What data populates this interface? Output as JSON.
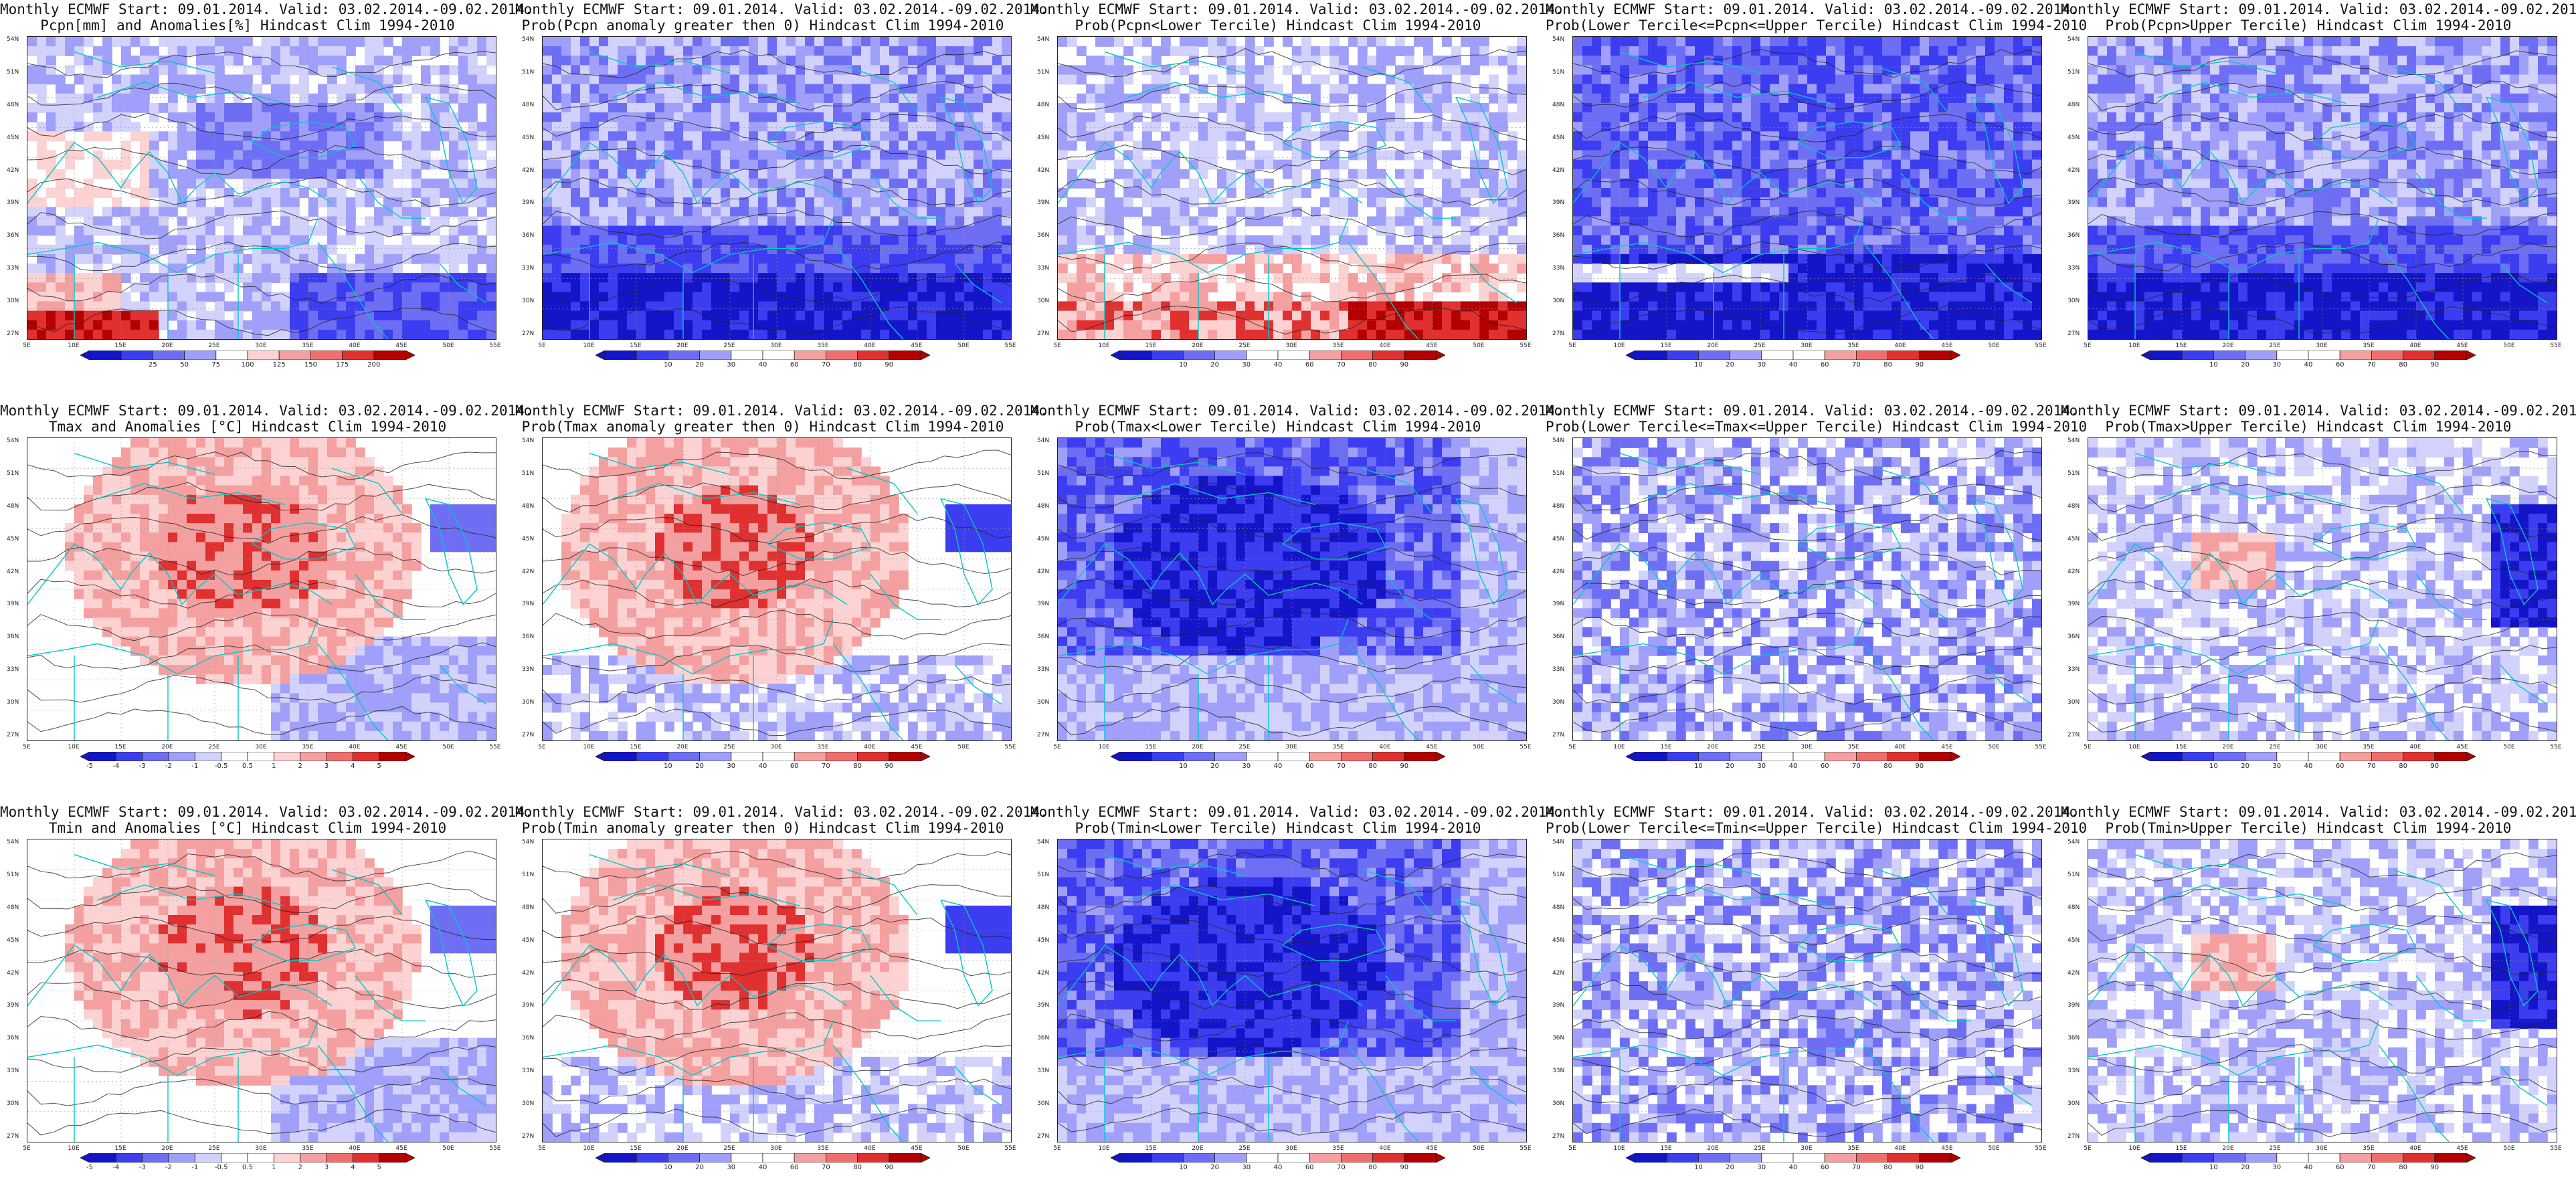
{
  "panels": [
    {
      "title_line1": "Monthly ECMWF Start: 09.01.2014. Valid: 03.02.2014.-09.02.2014.",
      "title_line2": "Pcpn[mm] and Anomalies[%]",
      "title_line3": "Hindcast Clim 1994-2010",
      "kind": "pcpn_anom",
      "cbar_type": "pcpn_pct",
      "cbar_labels": [
        "25",
        "50",
        "75",
        "100",
        "125",
        "150",
        "175",
        "200"
      ]
    },
    {
      "title_line1": "Monthly ECMWF Start: 09.01.2014. Valid: 03.02.2014.-09.02.2014.",
      "title_line2": "Prob(Pcpn anomaly greater then 0)",
      "title_line3": "Hindcast Clim 1994-2010",
      "kind": "pcpn_prob",
      "cbar_type": "prob",
      "cbar_labels": [
        "10",
        "20",
        "30",
        "40",
        "60",
        "70",
        "80",
        "90"
      ]
    },
    {
      "title_line1": "Monthly ECMWF Start: 09.01.2014. Valid: 03.02.2014.-09.02.2014.",
      "title_line2": "Prob(Pcpn<Lower Tercile)",
      "title_line3": "Hindcast Clim 1994-2010",
      "kind": "pcpn_lower",
      "cbar_type": "prob",
      "cbar_labels": [
        "10",
        "20",
        "30",
        "40",
        "60",
        "70",
        "80",
        "90"
      ]
    },
    {
      "title_line1": "Monthly ECMWF Start: 09.01.2014. Valid: 03.02.2014.-09.02.2014.",
      "title_line2": "Prob(Lower Tercile<=Pcpn<=Upper Tercile)",
      "title_line3": "Hindcast Clim 1994-2010",
      "kind": "pcpn_mid",
      "cbar_type": "prob",
      "cbar_labels": [
        "10",
        "20",
        "30",
        "40",
        "60",
        "70",
        "80",
        "90"
      ]
    },
    {
      "title_line1": "Monthly ECMWF Start: 09.01.2014. Valid: 03.02.2014.-09.02.2014.",
      "title_line2": "Prob(Pcpn>Upper Tercile)",
      "title_line3": "Hindcast Clim 1994-2010",
      "kind": "pcpn_upper",
      "cbar_type": "prob",
      "cbar_labels": [
        "10",
        "20",
        "30",
        "40",
        "60",
        "70",
        "80",
        "90"
      ]
    },
    {
      "title_line1": "Monthly ECMWF Start: 09.01.2014. Valid: 03.02.2014.-09.02.2014.",
      "title_line2": "Tmax and Anomalies [°C]",
      "title_line3": "Hindcast Clim 1994-2010",
      "kind": "warm_anom",
      "cbar_type": "temp",
      "cbar_labels": [
        "-5",
        "-4",
        "-3",
        "-2",
        "-1",
        "-0.5",
        "0.5",
        "1",
        "2",
        "3",
        "4",
        "5"
      ]
    },
    {
      "title_line1": "Monthly ECMWF Start: 09.01.2014. Valid: 03.02.2014.-09.02.2014.",
      "title_line2": "Prob(Tmax anomaly greater then 0)",
      "title_line3": "Hindcast Clim 1994-2010",
      "kind": "warm_prob",
      "cbar_type": "prob",
      "cbar_labels": [
        "10",
        "20",
        "30",
        "40",
        "60",
        "70",
        "80",
        "90"
      ]
    },
    {
      "title_line1": "Monthly ECMWF Start: 09.01.2014. Valid: 03.02.2014.-09.02.2014.",
      "title_line2": "Prob(Tmax<Lower Tercile)",
      "title_line3": "Hindcast Clim 1994-2010",
      "kind": "cold_strong",
      "cbar_type": "prob",
      "cbar_labels": [
        "10",
        "20",
        "30",
        "40",
        "60",
        "70",
        "80",
        "90"
      ]
    },
    {
      "title_line1": "Monthly ECMWF Start: 09.01.2014. Valid: 03.02.2014.-09.02.2014.",
      "title_line2": "Prob(Lower Tercile<=Tmax<=Upper Tercile)",
      "title_line3": "Hindcast Clim 1994-2010",
      "kind": "mid_mixed",
      "cbar_type": "prob",
      "cbar_labels": [
        "10",
        "20",
        "30",
        "40",
        "60",
        "70",
        "80",
        "90"
      ]
    },
    {
      "title_line1": "Monthly ECMWF Start: 09.01.2014. Valid: 03.02.2014.-09.02.2014.",
      "title_line2": "Prob(Tmax>Upper Tercile)",
      "title_line3": "Hindcast Clim 1994-2010",
      "kind": "upper_light",
      "cbar_type": "prob",
      "cbar_labels": [
        "10",
        "20",
        "30",
        "40",
        "60",
        "70",
        "80",
        "90"
      ]
    },
    {
      "title_line1": "Monthly ECMWF Start: 09.01.2014. Valid: 03.02.2014.-09.02.2014.",
      "title_line2": "Tmin and Anomalies [°C]",
      "title_line3": "Hindcast Clim 1994-2010",
      "kind": "warm_anom",
      "cbar_type": "temp",
      "cbar_labels": [
        "-5",
        "-4",
        "-3",
        "-2",
        "-1",
        "-0.5",
        "0.5",
        "1",
        "2",
        "3",
        "4",
        "5"
      ]
    },
    {
      "title_line1": "Monthly ECMWF Start: 09.01.2014. Valid: 03.02.2014.-09.02.2014.",
      "title_line2": "Prob(Tmin anomaly greater then 0)",
      "title_line3": "Hindcast Clim 1994-2010",
      "kind": "warm_prob",
      "cbar_type": "prob",
      "cbar_labels": [
        "10",
        "20",
        "30",
        "40",
        "60",
        "70",
        "80",
        "90"
      ]
    },
    {
      "title_line1": "Monthly ECMWF Start: 09.01.2014. Valid: 03.02.2014.-09.02.2014.",
      "title_line2": "Prob(Tmin<Lower Tercile)",
      "title_line3": "Hindcast Clim 1994-2010",
      "kind": "cold_strong",
      "cbar_type": "prob",
      "cbar_labels": [
        "10",
        "20",
        "30",
        "40",
        "60",
        "70",
        "80",
        "90"
      ]
    },
    {
      "title_line1": "Monthly ECMWF Start: 09.01.2014. Valid: 03.02.2014.-09.02.2014.",
      "title_line2": "Prob(Lower Tercile<=Tmin<=Upper Tercile)",
      "title_line3": "Hindcast Clim 1994-2010",
      "kind": "mid_mixed",
      "cbar_type": "prob",
      "cbar_labels": [
        "10",
        "20",
        "30",
        "40",
        "60",
        "70",
        "80",
        "90"
      ]
    },
    {
      "title_line1": "Monthly ECMWF Start: 09.01.2014. Valid: 03.02.2014.-09.02.2014.",
      "title_line2": "Prob(Tmin>Upper Tercile)",
      "title_line3": "Hindcast Clim 1994-2010",
      "kind": "upper_light",
      "cbar_type": "prob",
      "cbar_labels": [
        "10",
        "20",
        "30",
        "40",
        "60",
        "70",
        "80",
        "90"
      ]
    }
  ],
  "lat_labels": [
    "54N",
    "51N",
    "48N",
    "45N",
    "42N",
    "39N",
    "36N",
    "33N",
    "30N",
    "27N"
  ],
  "lon_labels": [
    "5E",
    "10E",
    "15E",
    "20E",
    "25E",
    "30E",
    "35E",
    "40E",
    "45E",
    "50E",
    "55E"
  ],
  "colors": {
    "deep_blue": "#1414c8",
    "blue": "#3c3cf0",
    "mid_blue": "#6e6ef5",
    "light_blue": "#a0a0fa",
    "pale_blue": "#d2d2fc",
    "white": "#ffffff",
    "pale_red": "#fcd2d2",
    "light_red": "#f5a0a0",
    "mid_red": "#f06e6e",
    "red": "#e03030",
    "deep_red": "#b40000",
    "coast": "#00c8c8",
    "contour": "#222222"
  }
}
